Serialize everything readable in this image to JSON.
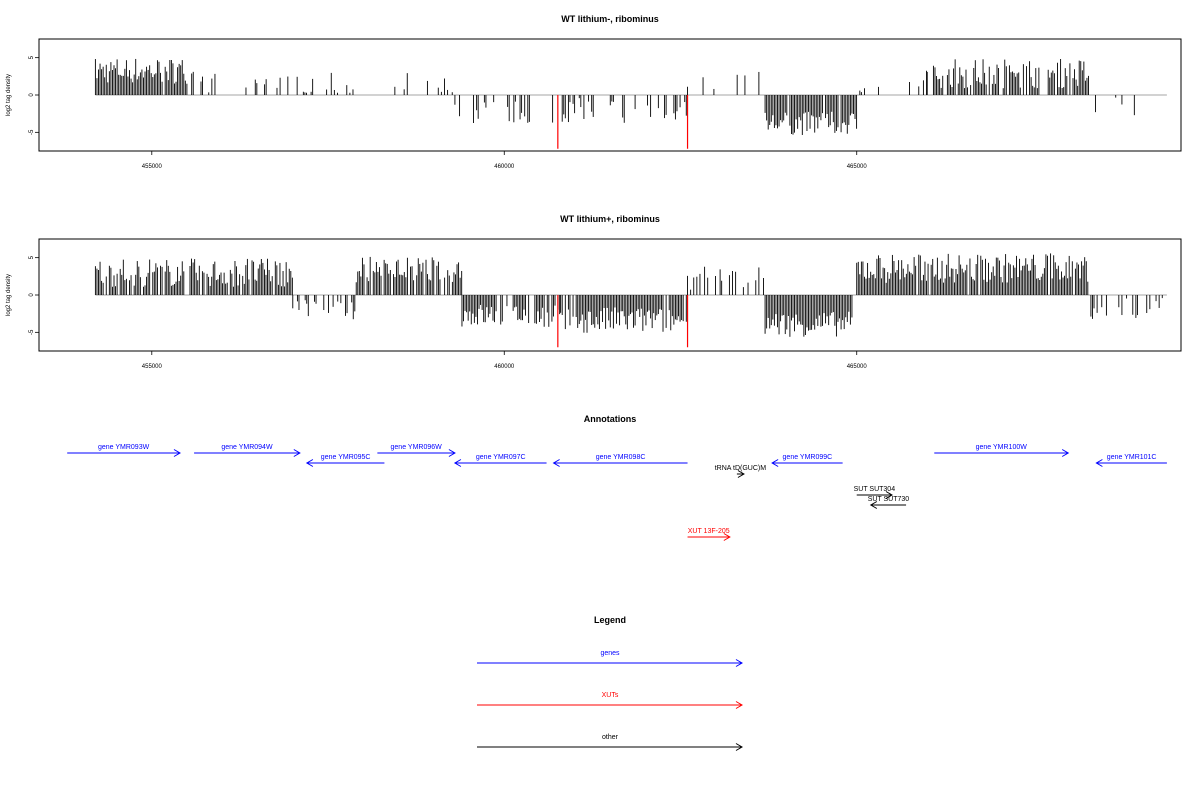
{
  "chart_data": [
    {
      "type": "bar",
      "title": "WT lithium-, ribominus",
      "xlabel": "",
      "ylabel": "log2 tag density",
      "xlim": [
        453400,
        469600
      ],
      "ylim": [
        -7.5,
        7.5
      ],
      "xticks": [
        455000,
        460000,
        465000
      ],
      "xtick_labels": [
        "455000",
        "460000",
        "465000"
      ],
      "yticks": [
        5,
        0,
        -5
      ],
      "ytick_labels": [
        "5",
        "0",
        "-5"
      ],
      "highlight_color": "#ff0000",
      "highlights": [
        {
          "x": 460760,
          "y": -7.2
        },
        {
          "x": 462600,
          "y": -7.2
        }
      ],
      "segments": [
        {
          "x0": 454200,
          "x1": 455500,
          "mean": 3.3,
          "amp": 1.8,
          "sign": 1,
          "density": 0.95
        },
        {
          "x0": 455500,
          "x1": 459300,
          "mean": 1.6,
          "amp": 1.6,
          "sign": 1,
          "density": 0.22
        },
        {
          "x0": 459300,
          "x1": 460800,
          "mean": -2.3,
          "amp": 1.6,
          "sign": -1,
          "density": 0.35
        },
        {
          "x0": 460800,
          "x1": 462600,
          "mean": -2.1,
          "amp": 1.7,
          "sign": -1,
          "density": 0.35
        },
        {
          "x0": 462600,
          "x1": 463700,
          "mean": 2.0,
          "amp": 1.5,
          "sign": 1,
          "density": 0.18
        },
        {
          "x0": 463700,
          "x1": 465000,
          "mean": -3.8,
          "amp": 1.6,
          "sign": -1,
          "density": 0.95
        },
        {
          "x0": 465000,
          "x1": 466000,
          "mean": 1.8,
          "amp": 1.6,
          "sign": 1,
          "density": 0.2
        },
        {
          "x0": 466000,
          "x1": 468300,
          "mean": 2.9,
          "amp": 2.0,
          "sign": 1,
          "density": 0.7
        },
        {
          "x0": 468300,
          "x1": 469400,
          "mean": -1.6,
          "amp": 1.5,
          "sign": -1,
          "density": 0.08
        }
      ]
    },
    {
      "type": "bar",
      "title": "WT lithium+, ribominus",
      "xlabel": "",
      "ylabel": "log2 tag density",
      "xlim": [
        453400,
        469600
      ],
      "ylim": [
        -7.5,
        7.5
      ],
      "xticks": [
        455000,
        460000,
        465000
      ],
      "xtick_labels": [
        "455000",
        "460000",
        "465000"
      ],
      "yticks": [
        5,
        0,
        -5
      ],
      "ytick_labels": [
        "5",
        "0",
        "-5"
      ],
      "highlight_color": "#ff0000",
      "highlights": [
        {
          "x": 460760,
          "y": -7.0
        },
        {
          "x": 462600,
          "y": -7.0
        }
      ],
      "segments": [
        {
          "x0": 454200,
          "x1": 457000,
          "mean": 3.0,
          "amp": 1.9,
          "sign": 1,
          "density": 0.85
        },
        {
          "x0": 457000,
          "x1": 457900,
          "mean": -2.0,
          "amp": 1.4,
          "sign": -1,
          "density": 0.5
        },
        {
          "x0": 457900,
          "x1": 459400,
          "mean": 3.4,
          "amp": 1.7,
          "sign": 1,
          "density": 0.9
        },
        {
          "x0": 459400,
          "x1": 460800,
          "mean": -2.7,
          "amp": 1.6,
          "sign": -1,
          "density": 0.75
        },
        {
          "x0": 460800,
          "x1": 462600,
          "mean": -3.4,
          "amp": 1.8,
          "sign": -1,
          "density": 0.95
        },
        {
          "x0": 462600,
          "x1": 463700,
          "mean": 2.2,
          "amp": 1.6,
          "sign": 1,
          "density": 0.35
        },
        {
          "x0": 463700,
          "x1": 464950,
          "mean": -3.9,
          "amp": 1.7,
          "sign": -1,
          "density": 0.98
        },
        {
          "x0": 465000,
          "x1": 468300,
          "mean": 3.6,
          "amp": 2.0,
          "sign": 1,
          "density": 0.95
        },
        {
          "x0": 468300,
          "x1": 469400,
          "mean": -1.8,
          "amp": 1.4,
          "sign": -1,
          "density": 0.35
        }
      ]
    }
  ],
  "annotations": {
    "title": "Annotations",
    "features": [
      {
        "label": "gene YMR093W",
        "x0": 453800,
        "x1": 455400,
        "strand": "+",
        "row": 0,
        "color": "#0000ff"
      },
      {
        "label": "gene YMR094W",
        "x0": 455600,
        "x1": 457100,
        "strand": "+",
        "row": 0,
        "color": "#0000ff"
      },
      {
        "label": "gene YMR095C",
        "x0": 457200,
        "x1": 458300,
        "strand": "-",
        "row": 1,
        "color": "#0000ff"
      },
      {
        "label": "gene YMR096W",
        "x0": 458200,
        "x1": 459300,
        "strand": "+",
        "row": 0,
        "color": "#0000ff"
      },
      {
        "label": "gene YMR097C",
        "x0": 459300,
        "x1": 460600,
        "strand": "-",
        "row": 1,
        "color": "#0000ff"
      },
      {
        "label": "gene YMR098C",
        "x0": 460700,
        "x1": 462600,
        "strand": "-",
        "row": 1,
        "color": "#0000ff"
      },
      {
        "label": "gene YMR099C",
        "x0": 463800,
        "x1": 464800,
        "strand": "-",
        "row": 1,
        "color": "#0000ff"
      },
      {
        "label": "gene YMR100W",
        "x0": 466100,
        "x1": 468000,
        "strand": "+",
        "row": 0,
        "color": "#0000ff"
      },
      {
        "label": "gene YMR101C",
        "x0": 468400,
        "x1": 469400,
        "strand": "-",
        "row": 1,
        "color": "#0000ff"
      },
      {
        "label": "tRNA tD(GUC)M",
        "x0": 463300,
        "x1": 463400,
        "strand": "+",
        "row": 2,
        "color": "#000000"
      },
      {
        "label": "SUT SUT304",
        "x0": 465000,
        "x1": 465500,
        "strand": "+",
        "row": 3,
        "color": "#000000"
      },
      {
        "label": "SUT SUT730",
        "x0": 465200,
        "x1": 465700,
        "strand": "-",
        "row": 4,
        "color": "#000000"
      },
      {
        "label": "XUT 13F-205",
        "x0": 462600,
        "x1": 463200,
        "strand": "+",
        "row": 5,
        "color": "#ff0000"
      }
    ]
  },
  "legend": {
    "title": "Legend",
    "items": [
      {
        "label": "genes",
        "color": "#0000ff"
      },
      {
        "label": "XUTs",
        "color": "#ff0000"
      },
      {
        "label": "other",
        "color": "#000000"
      }
    ]
  }
}
